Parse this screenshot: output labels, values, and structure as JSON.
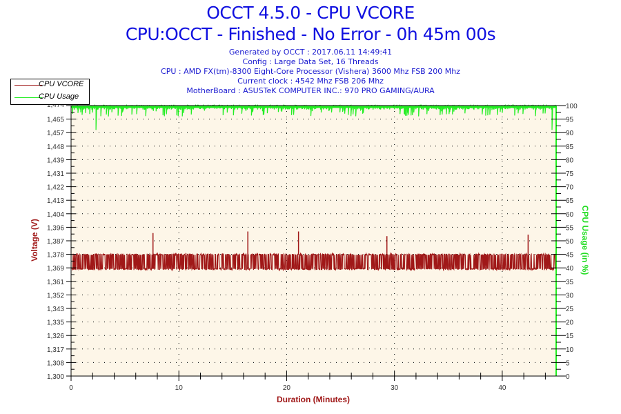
{
  "header": {
    "title": "OCCT 4.5.0 - CPU VCORE",
    "subtitle": "CPU:OCCT - Finished - No Error - 0h 45m 00s",
    "info_lines": [
      "Generated by OCCT : 2017.06.11 14:49:41",
      "Config : Large Data Set, 16 Threads",
      "CPU : AMD FX(tm)-8300 Eight-Core Processor (Vishera) 3600 Mhz FSB 200 Mhz",
      "Current clock : 4542 Mhz FSB 206 Mhz",
      "MotherBoard : ASUSTeK COMPUTER INC.: 970 PRO GAMING/AURA"
    ]
  },
  "legend": {
    "items": [
      {
        "label": "CPU VCORE",
        "color": "#a01818"
      },
      {
        "label": "CPU Usage",
        "color": "#22ee22"
      }
    ]
  },
  "colors": {
    "vcore": "#a01818",
    "usage": "#22ee22",
    "plot_bg": "#fdf6e8",
    "title": "#1010e0"
  },
  "axes": {
    "x_title": "Duration (Minutes)",
    "y_left_title": "Voltage (V)",
    "y_right_title": "CPU Usage (in %)",
    "x_ticks": [
      "0",
      "10",
      "20",
      "30",
      "40"
    ],
    "y_left_ticks": [
      "1,300",
      "1,308",
      "1,317",
      "1,326",
      "1,335",
      "1,343",
      "1,352",
      "1,361",
      "1,369",
      "1,378",
      "1,387",
      "1,396",
      "1,404",
      "1,413",
      "1,422",
      "1,431",
      "1,439",
      "1,448",
      "1,457",
      "1,465",
      "1,474"
    ],
    "y_right_ticks": [
      "0",
      "5",
      "10",
      "15",
      "20",
      "25",
      "30",
      "35",
      "40",
      "45",
      "50",
      "55",
      "60",
      "65",
      "70",
      "75",
      "80",
      "85",
      "90",
      "95",
      "100"
    ]
  },
  "chart_data": {
    "type": "line",
    "title": "OCCT 4.5.0 - CPU VCORE",
    "subtitle": "CPU:OCCT - Finished - No Error - 0h 45m 00s",
    "xlabel": "Duration (Minutes)",
    "ylabel": "Voltage (V)",
    "y2label": "CPU Usage (in %)",
    "xlim": [
      0,
      45
    ],
    "ylim": [
      1.3,
      1.474
    ],
    "y2lim": [
      0,
      100
    ],
    "grid": true,
    "legend_position": "top-left",
    "series": [
      {
        "name": "CPU VCORE",
        "axis": "left",
        "description": "Rapidly oscillates between ~1.369 V and ~1.378 V for the entire run, with occasional spikes to ~1.387-1.392 V",
        "x": [
          0,
          7.5,
          7.6,
          16.3,
          16.4,
          21.0,
          21.1,
          29.2,
          29.3,
          42.3,
          42.4,
          45
        ],
        "values": [
          1.378,
          1.378,
          1.392,
          1.378,
          1.393,
          1.378,
          1.393,
          1.378,
          1.39,
          1.378,
          1.391,
          1.378
        ],
        "min": 1.369,
        "max": 1.393,
        "typical_range": [
          1.369,
          1.378
        ]
      },
      {
        "name": "CPU Usage",
        "axis": "right",
        "description": "Near 100% throughout with frequent small dips to ~96-98%; notable dips to ~91% at ~2.3 min and ~44.6 min",
        "x": [
          0,
          2.2,
          2.3,
          2.4,
          10,
          20,
          30,
          40,
          44.5,
          44.6,
          44.7,
          45
        ],
        "values": [
          99,
          99,
          91,
          99,
          99,
          99,
          99,
          99,
          99,
          91,
          99,
          99
        ],
        "min": 91,
        "max": 100,
        "typical_range": [
          96,
          100
        ]
      }
    ]
  }
}
